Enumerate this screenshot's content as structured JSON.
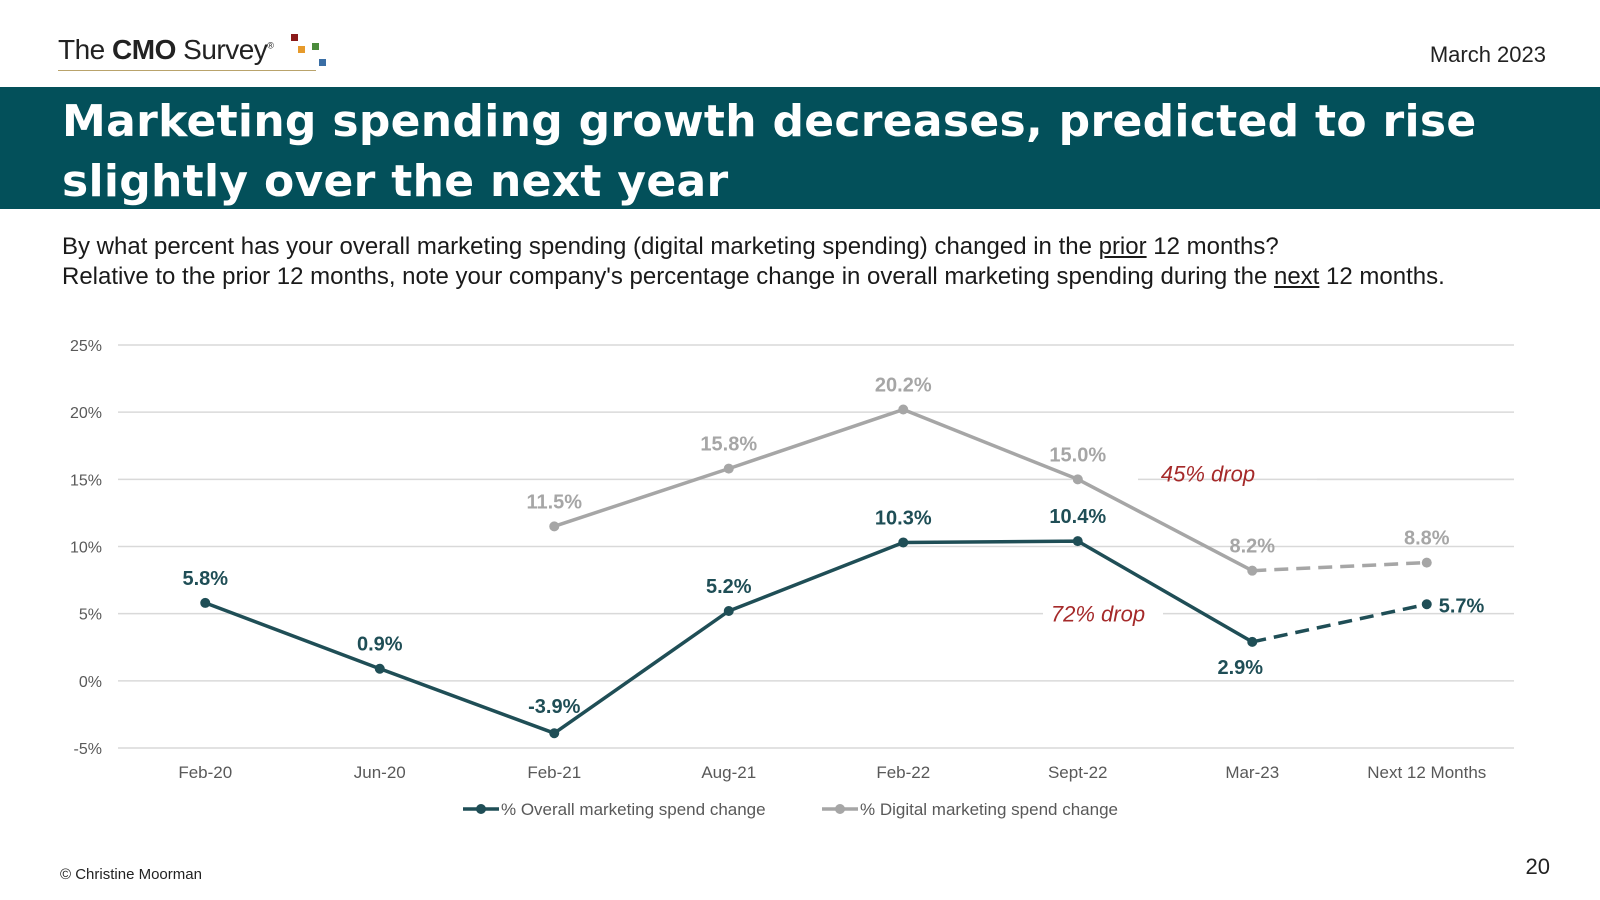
{
  "header": {
    "logo_pre": "The ",
    "logo_bold": "CMO",
    "logo_post": " Survey",
    "logo_reg": "®",
    "date": "March 2023"
  },
  "title": "Marketing spending growth decreases, predicted to rise slightly over the next year",
  "question": {
    "line1_pre": "By what percent has your overall marketing spending (digital marketing spending) changed in the ",
    "line1_u": "prior",
    "line1_post": " 12 months?",
    "line2_pre": "Relative to the prior 12 months, note your company's percentage change in overall marketing spending during the ",
    "line2_u": "next",
    "line2_post": " 12 months."
  },
  "chart_data": {
    "type": "line",
    "categories": [
      "Feb-20",
      "Jun-20",
      "Feb-21",
      "Aug-21",
      "Feb-22",
      "Sept-22",
      "Mar-23",
      "Next 12 Months"
    ],
    "ylim": [
      -5,
      25
    ],
    "yticks": [
      -5,
      0,
      5,
      10,
      15,
      20,
      25
    ],
    "ytick_labels": [
      "-5%",
      "0%",
      "5%",
      "10%",
      "15%",
      "20%",
      "25%"
    ],
    "grid": true,
    "legend": "bottom",
    "series": [
      {
        "name": "% Overall marketing spend change",
        "color": "#1f4e56",
        "values": [
          5.8,
          0.9,
          -3.9,
          5.2,
          10.3,
          10.4,
          2.9,
          5.7
        ],
        "labels": [
          "5.8%",
          "0.9%",
          "-3.9%",
          "5.2%",
          "10.3%",
          "10.4%",
          "2.9%",
          "5.7%"
        ],
        "dashed_from": 6
      },
      {
        "name": "% Digital marketing spend change",
        "color": "#a6a6a6",
        "values": [
          null,
          null,
          11.5,
          15.8,
          20.2,
          15.0,
          8.2,
          8.8
        ],
        "labels": [
          "",
          "",
          "11.5%",
          "15.8%",
          "20.2%",
          "15.0%",
          "8.2%",
          "8.8%"
        ],
        "dashed_from": 6
      }
    ],
    "annotations": [
      {
        "text": "45% drop",
        "color": "#a52a2a"
      },
      {
        "text": "72% drop",
        "color": "#a52a2a"
      }
    ]
  },
  "footer": {
    "copyright": "© Christine Moorman",
    "page": "20"
  }
}
